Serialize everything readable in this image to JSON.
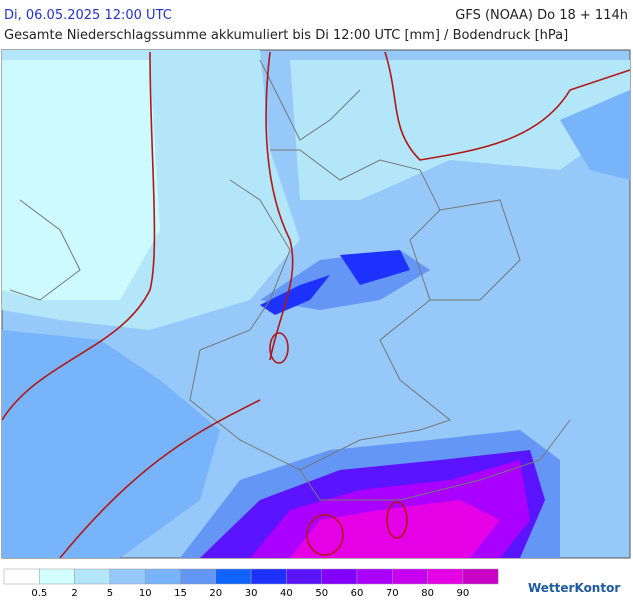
{
  "header": {
    "datetime": "Di, 06.05.2025 12:00 UTC",
    "model": "GFS (NOAA) Do 18 + 114h",
    "title": "Gesamte Niederschlagssumme akkumuliert bis Di 12:00 UTC [mm] / Bodendruck [hPa]"
  },
  "legend": {
    "colors": [
      "#ffffff",
      "#d2ffff",
      "#b4e6fa",
      "#96c8fa",
      "#78b4fa",
      "#6496f5",
      "#0f64ff",
      "#1e32ff",
      "#5a14ff",
      "#8200ff",
      "#aa00ff",
      "#c800f0",
      "#e600e6",
      "#c800c8"
    ],
    "labels": [
      "0.5",
      "2",
      "5",
      "10",
      "15",
      "20",
      "30",
      "40",
      "50",
      "60",
      "70",
      "80",
      "90"
    ]
  },
  "brand": "WetterKontor"
}
